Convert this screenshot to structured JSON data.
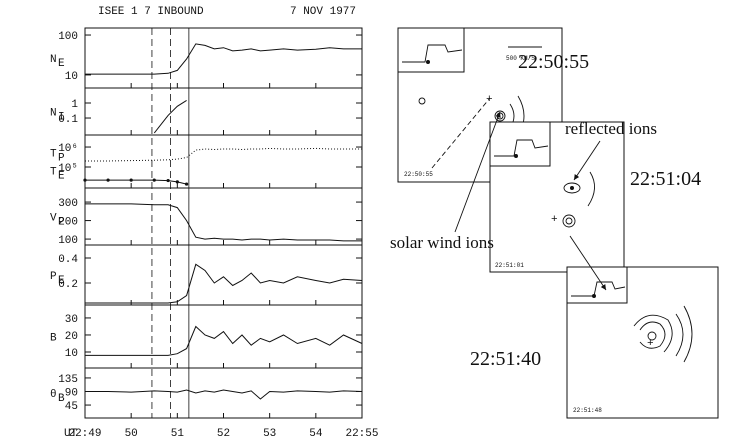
{
  "chart_data": {
    "type": "line",
    "title": "ISEE 1  7 INBOUND",
    "subtitle": "7 NOV 1977",
    "xlabel": "UT",
    "x": [
      49,
      49.5,
      50,
      50.5,
      50.8,
      51,
      51.2,
      51.4,
      51.6,
      51.8,
      52,
      52.2,
      52.4,
      52.6,
      52.8,
      53,
      53.3,
      53.6,
      54,
      54.3,
      54.6,
      55
    ],
    "xlim": [
      49,
      55
    ],
    "xticks": [
      {
        "value": 49,
        "label": "22:49"
      },
      50,
      51,
      52,
      53,
      54,
      {
        "value": 55,
        "label": "22:55"
      }
    ],
    "vlines": [
      {
        "x": 50.45,
        "style": "dashed"
      },
      {
        "x": 50.85,
        "style": "dashed"
      },
      {
        "x": 51.25,
        "style": "solid"
      }
    ],
    "color": "#111111",
    "panels": [
      {
        "ylabels": [
          {
            "main": "N",
            "sub": "E"
          }
        ],
        "log": true,
        "ylim": [
          4.7,
          150
        ],
        "yticks": [
          10,
          100
        ],
        "series": [
          {
            "style": "solid",
            "values": [
              10.5,
              10.5,
              10.5,
              10.5,
              11,
              13,
              25,
              60,
              55,
              45,
              48,
              40,
              42,
              45,
              40,
              42,
              45,
              42,
              44,
              48,
              45,
              45
            ]
          }
        ]
      },
      {
        "ylabels": [
          {
            "main": "N",
            "sub": "I"
          }
        ],
        "log": true,
        "ylim": [
          0.0074,
          10
        ],
        "yticks": [
          1,
          0.1
        ],
        "series": [
          {
            "style": "solid",
            "values": [
              null,
              null,
              null,
              0.01,
              0.15,
              0.6,
              1.5,
              null,
              null,
              null,
              null,
              null,
              null,
              null,
              null,
              null,
              null,
              null,
              null,
              null,
              null,
              null
            ]
          }
        ]
      },
      {
        "ylabels": [
          {
            "main": "T",
            "sub": "P"
          },
          {
            "main": "T",
            "sub": "E"
          }
        ],
        "log": true,
        "ylim": [
          8900,
          4000000
        ],
        "yticks": [
          {
            "value": 1000000,
            "label": "10⁶"
          },
          {
            "value": 100000,
            "label": "10⁵"
          }
        ],
        "series": [
          {
            "style": "dotted",
            "values": [
              200000,
              200000,
              210000,
              220000,
              230000,
              250000,
              300000,
              700000,
              800000,
              750000,
              800000,
              800000,
              750000,
              800000,
              800000,
              850000,
              800000,
              800000,
              850000,
              800000,
              800000,
              800000
            ]
          },
          {
            "style": "markers",
            "values": [
              22000,
              22000,
              22000,
              22000,
              21000,
              18000,
              14000,
              null,
              null,
              null,
              null,
              null,
              null,
              null,
              null,
              null,
              null,
              null,
              null,
              null,
              null,
              null
            ]
          }
        ]
      },
      {
        "ylabels": [
          {
            "main": "V",
            "sub": "P"
          }
        ],
        "log": false,
        "ylim": [
          68,
          376
        ],
        "yticks": [
          300,
          200,
          100
        ],
        "series": [
          {
            "style": "solid",
            "values": [
              290,
              290,
              290,
              285,
              285,
              270,
              200,
              110,
              100,
              105,
              100,
              100,
              95,
              100,
              100,
              95,
              100,
              95,
              95,
              95,
              90,
              90
            ]
          }
        ]
      },
      {
        "ylabels": [
          {
            "main": "P",
            "sub": "E"
          }
        ],
        "log": false,
        "ylim": [
          0.024,
          0.504
        ],
        "yticks": [
          0.4,
          0.2
        ],
        "series": [
          {
            "style": "solid",
            "values": [
              0.04,
              0.04,
              0.04,
              0.04,
              0.04,
              0.05,
              0.1,
              0.35,
              0.3,
              0.2,
              0.25,
              0.18,
              0.22,
              0.28,
              0.2,
              0.22,
              0.2,
              0.25,
              0.22,
              0.2,
              0.23,
              0.22
            ]
          }
        ]
      },
      {
        "ylabels": [
          {
            "main": "B",
            "sub": ""
          }
        ],
        "log": false,
        "ylim": [
          0.6,
          37.6
        ],
        "yticks": [
          30,
          20,
          10
        ],
        "series": [
          {
            "style": "solid",
            "values": [
              8,
              8,
              8,
              8,
              8,
              9,
              12,
              25,
              20,
              18,
              22,
              15,
              20,
              14,
              18,
              16,
              20,
              15,
              18,
              14,
              20,
              15
            ]
          }
        ]
      },
      {
        "ylabels": [
          {
            "main": "θ",
            "sub": "B"
          }
        ],
        "log": false,
        "ylim": [
          2,
          168
        ],
        "yticks": [
          135,
          90,
          45
        ],
        "series": [
          {
            "style": "solid",
            "values": [
              90,
              90,
              88,
              92,
              90,
              88,
              95,
              85,
              92,
              88,
              95,
              90,
              85,
              92,
              65,
              90,
              88,
              92,
              90,
              88,
              92,
              90
            ]
          }
        ]
      }
    ]
  },
  "snapshots": [
    {
      "time": "22:50:55",
      "stamp": "22:50:55"
    },
    {
      "time": "22:51:04",
      "stamp": "22:51:01"
    },
    {
      "time": "22:51:40",
      "stamp": "22:51:48"
    }
  ],
  "scale_label": "500 KM/S",
  "annotations": [
    "reflected ions",
    "solar wind ions"
  ]
}
